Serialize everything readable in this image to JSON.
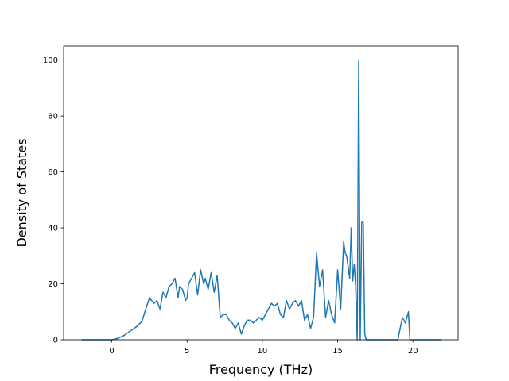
{
  "chart_data": {
    "type": "line",
    "title": "",
    "xlabel": "Frequency (THz)",
    "ylabel": "Density of States",
    "xlim": [
      -3.2,
      23.0
    ],
    "ylim": [
      0,
      105
    ],
    "xticks": [
      0,
      5,
      10,
      15,
      20
    ],
    "yticks": [
      0,
      20,
      40,
      60,
      80,
      100
    ],
    "grid": false,
    "legend": "none",
    "line_color": "#1f77b4",
    "series": [
      {
        "x": [
          -2.0,
          0.0,
          0.4,
          0.8,
          1.2,
          1.6,
          2.0,
          2.2,
          2.5,
          2.8,
          3.0,
          3.2,
          3.4,
          3.6,
          3.8,
          4.0,
          4.2,
          4.4,
          4.5,
          4.7,
          4.9,
          5.0,
          5.1,
          5.3,
          5.5,
          5.7,
          5.9,
          6.1,
          6.2,
          6.4,
          6.6,
          6.8,
          7.0,
          7.2,
          7.4,
          7.6,
          7.8,
          8.0,
          8.2,
          8.4,
          8.6,
          8.8,
          9.0,
          9.2,
          9.4,
          9.6,
          9.8,
          10.0,
          10.2,
          10.4,
          10.6,
          10.8,
          11.0,
          11.2,
          11.4,
          11.6,
          11.8,
          12.0,
          12.2,
          12.4,
          12.6,
          12.8,
          13.0,
          13.2,
          13.4,
          13.6,
          13.8,
          14.0,
          14.2,
          14.4,
          14.6,
          14.8,
          15.0,
          15.2,
          15.4,
          15.5,
          15.6,
          15.8,
          15.9,
          16.0,
          16.1,
          16.2,
          16.3,
          16.4,
          16.5,
          16.6,
          16.7,
          16.8,
          16.9,
          17.0,
          17.1,
          17.2,
          17.3,
          17.4,
          17.6,
          18.0,
          18.5,
          19.0,
          19.3,
          19.5,
          19.7,
          19.8,
          19.9,
          20.0,
          20.3,
          20.8,
          21.9
        ],
        "y": [
          0,
          0,
          0.5,
          1.5,
          3,
          4.5,
          6.5,
          10,
          15,
          13,
          14,
          11,
          17,
          15,
          19,
          20,
          22,
          15,
          19,
          18,
          14,
          15,
          20,
          22,
          24,
          16,
          25,
          20,
          22,
          18,
          24,
          17,
          23,
          8,
          9,
          9,
          7,
          6,
          4,
          6,
          2,
          5,
          7,
          7,
          6,
          7,
          8,
          7,
          9,
          11,
          13,
          12,
          13,
          9,
          8,
          14,
          11,
          13,
          14,
          12,
          14,
          7,
          9,
          4,
          8,
          31,
          19,
          25,
          8,
          14,
          9,
          6,
          25,
          11,
          35,
          31,
          30,
          22,
          40,
          21,
          27,
          19,
          0,
          100,
          0,
          42,
          42,
          2,
          0,
          0,
          0,
          0,
          0,
          0,
          0,
          0,
          0,
          0,
          8,
          6,
          10,
          0,
          0,
          0,
          0,
          0,
          0
        ]
      }
    ]
  }
}
